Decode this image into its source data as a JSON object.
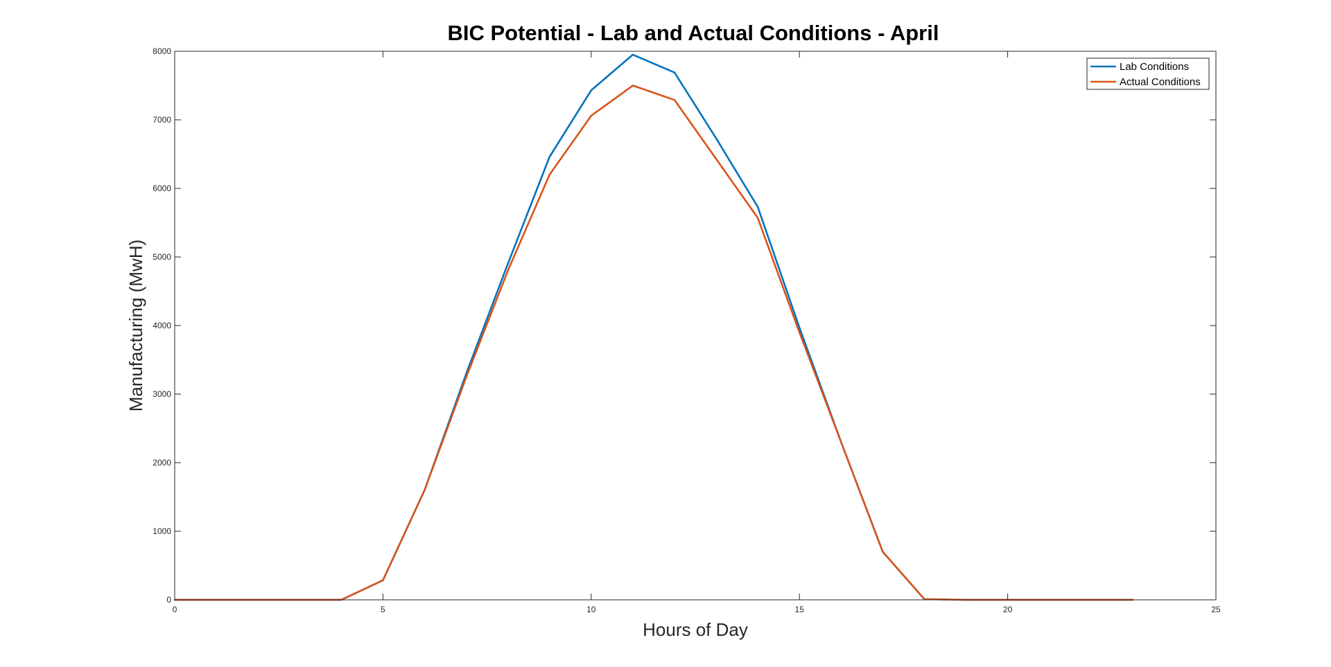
{
  "chart_data": {
    "type": "line",
    "title": "BIC Potential - Lab and Actual Conditions - April",
    "xlabel": "Hours of Day",
    "ylabel": "Manufacturing (MwH)",
    "xlim": [
      0,
      25
    ],
    "ylim": [
      0,
      8000
    ],
    "xticks": [
      0,
      5,
      10,
      15,
      20,
      25
    ],
    "yticks": [
      0,
      1000,
      2000,
      3000,
      4000,
      5000,
      6000,
      7000,
      8000
    ],
    "grid": false,
    "legend_position": "top-right",
    "x": [
      0,
      1,
      2,
      3,
      4,
      5,
      6,
      7,
      8,
      9,
      10,
      11,
      12,
      13,
      14,
      15,
      16,
      17,
      18,
      19,
      20,
      21,
      22,
      23
    ],
    "series": [
      {
        "name": "Lab Conditions",
        "color": "#0072BD",
        "values": [
          0,
          0,
          0,
          0,
          0,
          285,
          1600,
          3300,
          4900,
          6460,
          7430,
          7950,
          7690,
          6730,
          5730,
          3970,
          2300,
          700,
          10,
          0,
          0,
          0,
          0,
          0
        ]
      },
      {
        "name": "Actual Conditions",
        "color": "#D95319",
        "values": [
          0,
          0,
          0,
          0,
          0,
          285,
          1600,
          3250,
          4800,
          6200,
          7060,
          7500,
          7290,
          6430,
          5570,
          3900,
          2300,
          700,
          10,
          0,
          0,
          0,
          0,
          0
        ]
      }
    ]
  }
}
